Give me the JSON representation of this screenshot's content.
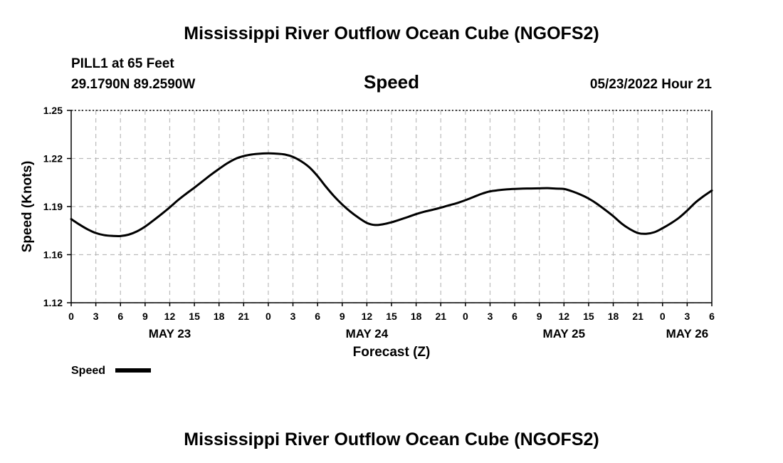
{
  "page": {
    "title": "Mississippi River Outflow Ocean Cube (NGOFS2)",
    "station": "PILL1 at 65 Feet",
    "coords": "29.1790N  89.2590W",
    "date_stamp": "05/23/2022 Hour 21",
    "footer_title": "Mississippi River Outflow Ocean Cube (NGOFS2)"
  },
  "chart_data": {
    "type": "line",
    "title": "Speed",
    "xlabel": "Forecast (Z)",
    "ylabel": "Speed (Knots)",
    "ylim": [
      1.12,
      1.25
    ],
    "xlim_hours": [
      0,
      78
    ],
    "grid": true,
    "legend_position": "bottom-left",
    "y_ticks": [
      "1.25",
      "1.22",
      "1.19",
      "1.16",
      "1.12"
    ],
    "x_tick_labels": [
      "0",
      "3",
      "6",
      "9",
      "12",
      "15",
      "18",
      "21",
      "0",
      "3",
      "6",
      "9",
      "12",
      "15",
      "18",
      "21",
      "0",
      "3",
      "6",
      "9",
      "12",
      "15",
      "18",
      "21",
      "0",
      "3",
      "6"
    ],
    "day_labels": [
      {
        "text": "MAY 23",
        "hour": 12
      },
      {
        "text": "MAY 24",
        "hour": 36
      },
      {
        "text": "MAY 25",
        "hour": 60
      },
      {
        "text": "MAY 26",
        "hour": 75
      }
    ],
    "series": [
      {
        "name": "Speed",
        "color": "#000000",
        "x": [
          0,
          1,
          2,
          3,
          4,
          5,
          6,
          7,
          8,
          9,
          10,
          11,
          12,
          13,
          14,
          15,
          16,
          17,
          18,
          19,
          20,
          21,
          22,
          23,
          24,
          25,
          26,
          27,
          28,
          29,
          30,
          31,
          32,
          33,
          34,
          35,
          36,
          37,
          38,
          39,
          40,
          41,
          42,
          43,
          44,
          45,
          46,
          47,
          48,
          49,
          50,
          51,
          52,
          53,
          54,
          55,
          56,
          57,
          58,
          59,
          60,
          61,
          62,
          63,
          64,
          65,
          66,
          67,
          68,
          69,
          70,
          71,
          72,
          73,
          74,
          75,
          76,
          77,
          78
        ],
        "y": [
          1.1822,
          1.1788,
          1.1758,
          1.1735,
          1.1722,
          1.1717,
          1.1716,
          1.1725,
          1.1745,
          1.1775,
          1.1813,
          1.1853,
          1.1895,
          1.194,
          1.198,
          1.2018,
          1.2058,
          1.2098,
          1.2135,
          1.217,
          1.2198,
          1.2215,
          1.2225,
          1.223,
          1.2232,
          1.223,
          1.2225,
          1.221,
          1.2183,
          1.2145,
          1.209,
          1.2025,
          1.1965,
          1.1913,
          1.1868,
          1.183,
          1.1798,
          1.1785,
          1.179,
          1.1802,
          1.1818,
          1.1835,
          1.1853,
          1.1868,
          1.188,
          1.1893,
          1.1908,
          1.1922,
          1.194,
          1.196,
          1.198,
          1.1995,
          1.2002,
          1.2007,
          1.201,
          1.2012,
          1.2013,
          1.2014,
          1.2015,
          1.2012,
          1.201,
          1.1995,
          1.1975,
          1.195,
          1.1918,
          1.188,
          1.184,
          1.1795,
          1.176,
          1.1735,
          1.173,
          1.174,
          1.1765,
          1.1795,
          1.183,
          1.1875,
          1.1925,
          1.1965,
          1.2
        ]
      }
    ]
  }
}
